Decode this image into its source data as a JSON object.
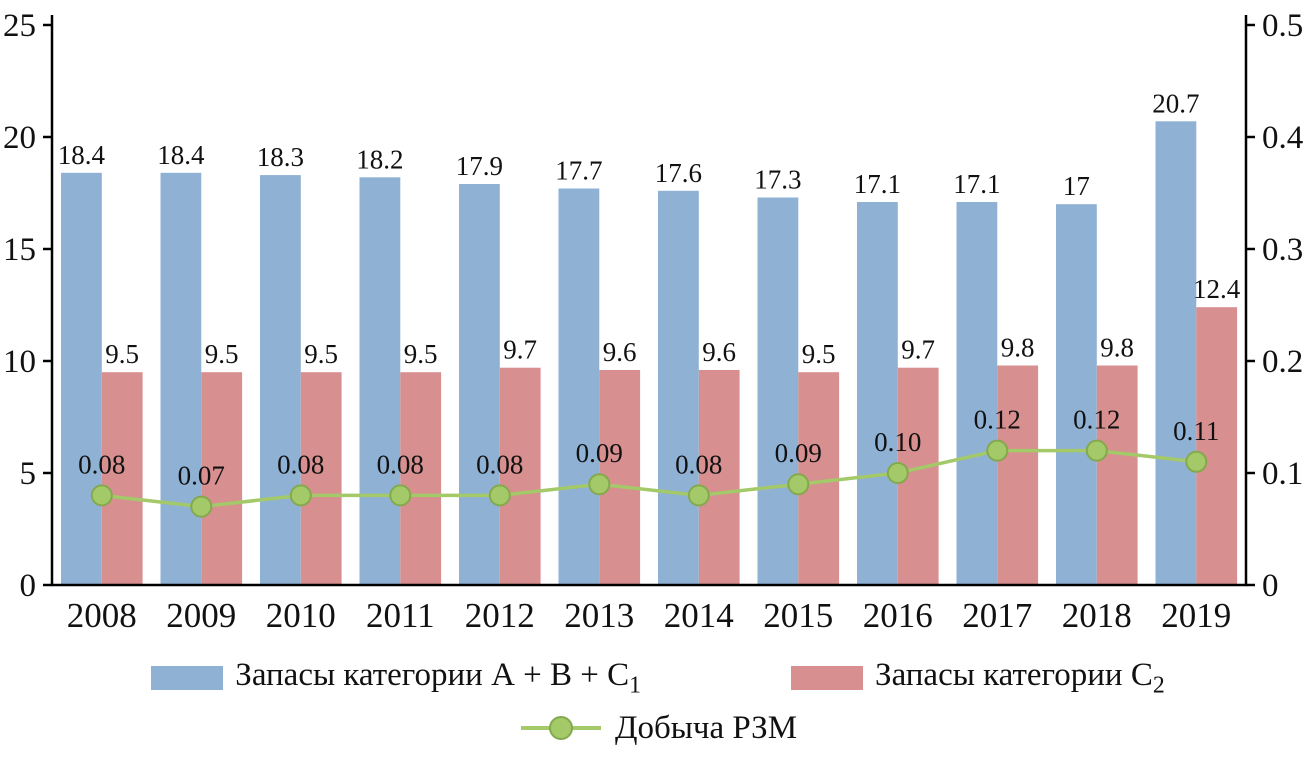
{
  "chart_data": {
    "type": "bar+line",
    "title": "",
    "categories": [
      "2008",
      "2009",
      "2010",
      "2011",
      "2012",
      "2013",
      "2014",
      "2015",
      "2016",
      "2017",
      "2018",
      "2019"
    ],
    "series": [
      {
        "name": "Запасы категории А + В + С₁",
        "type": "bar",
        "axis": "left",
        "color": "#8fb1d4",
        "values": [
          18.4,
          18.4,
          18.3,
          18.2,
          17.9,
          17.7,
          17.6,
          17.3,
          17.1,
          17.1,
          17,
          20.7
        ],
        "labels": [
          "18.4",
          "18.4",
          "18.3",
          "18.2",
          "17.9",
          "17.7",
          "17.6",
          "17.3",
          "17.1",
          "17.1",
          "17",
          "20.7"
        ]
      },
      {
        "name": "Запасы категории С₂",
        "type": "bar",
        "axis": "left",
        "color": "#d78f90",
        "values": [
          9.5,
          9.5,
          9.5,
          9.5,
          9.7,
          9.6,
          9.6,
          9.5,
          9.7,
          9.8,
          9.8,
          12.4
        ],
        "labels": [
          "9.5",
          "9.5",
          "9.5",
          "9.5",
          "9.7",
          "9.6",
          "9.6",
          "9.5",
          "9.7",
          "9.8",
          "9.8",
          "12.4"
        ]
      },
      {
        "name": "Добыча РЗМ",
        "type": "line",
        "axis": "right",
        "color": "#a4c969",
        "marker_stroke": "#84a94c",
        "values": [
          0.08,
          0.07,
          0.08,
          0.08,
          0.08,
          0.09,
          0.08,
          0.09,
          0.1,
          0.12,
          0.12,
          0.11
        ],
        "labels": [
          "0.08",
          "0.07",
          "0.08",
          "0.08",
          "0.08",
          "0.09",
          "0.08",
          "0.09",
          "0.10",
          "0.12",
          "0.12",
          "0.11"
        ]
      }
    ],
    "left_axis": {
      "min": 0,
      "max": 25,
      "tick_labels": [
        "0",
        "5",
        "10",
        "15",
        "20",
        "25"
      ]
    },
    "right_axis": {
      "min": 0,
      "max": 0.5,
      "tick_labels": [
        "0",
        "0.1",
        "0.2",
        "0.3",
        "0.4",
        "0.5"
      ]
    },
    "grid": false,
    "legend_position": "bottom"
  },
  "legend": {
    "items": [
      {
        "label": "Запасы категории А + В + С",
        "sub": "1",
        "color": "#8fb1d4",
        "marker": "bar-swatch"
      },
      {
        "label": "Запасы категории С",
        "sub": "2",
        "color": "#d78f90",
        "marker": "bar-swatch"
      },
      {
        "label": "Добыча РЗМ",
        "sub": "",
        "color": "#a4c969",
        "marker": "line-marker"
      }
    ]
  }
}
